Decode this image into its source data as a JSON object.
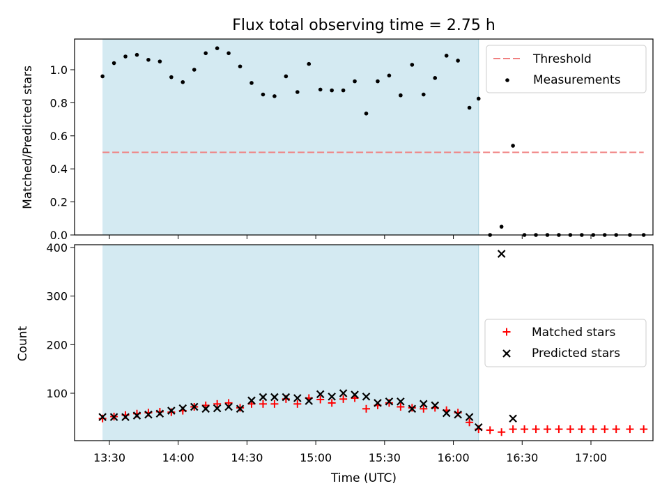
{
  "chart_data": [
    {
      "type": "scatter",
      "title": "Flux total observing time = 2.75 h",
      "xlabel": "",
      "ylabel": "Matched/Predicted stars",
      "ylim": [
        0,
        1.18
      ],
      "yticks": [
        "0.0",
        "0.2",
        "0.4",
        "0.6",
        "0.8",
        "1.0"
      ],
      "shaded_span": [
        "13:27",
        "16:11"
      ],
      "legend": {
        "position": "top-right",
        "entries": [
          "Threshold",
          "Measurements"
        ]
      },
      "threshold": {
        "name": "Threshold",
        "value": 0.5,
        "x_range": [
          "13:27",
          "17:23"
        ],
        "color": "#f08080"
      },
      "series": [
        {
          "name": "Measurements",
          "color": "#000000",
          "points": [
            [
              "13:27",
              0.96
            ],
            [
              "13:32",
              1.04
            ],
            [
              "13:37",
              1.08
            ],
            [
              "13:42",
              1.09
            ],
            [
              "13:47",
              1.06
            ],
            [
              "13:52",
              1.05
            ],
            [
              "13:57",
              0.955
            ],
            [
              "14:02",
              0.925
            ],
            [
              "14:07",
              1.0
            ],
            [
              "14:12",
              1.1
            ],
            [
              "14:17",
              1.13
            ],
            [
              "14:22",
              1.1
            ],
            [
              "14:27",
              1.02
            ],
            [
              "14:32",
              0.92
            ],
            [
              "14:37",
              0.85
            ],
            [
              "14:42",
              0.84
            ],
            [
              "14:47",
              0.96
            ],
            [
              "14:52",
              0.865
            ],
            [
              "14:57",
              1.035
            ],
            [
              "15:02",
              0.88
            ],
            [
              "15:07",
              0.875
            ],
            [
              "15:12",
              0.875
            ],
            [
              "15:17",
              0.93
            ],
            [
              "15:22",
              0.735
            ],
            [
              "15:27",
              0.93
            ],
            [
              "15:32",
              0.965
            ],
            [
              "15:37",
              0.845
            ],
            [
              "15:42",
              1.03
            ],
            [
              "15:47",
              0.85
            ],
            [
              "15:52",
              0.95
            ],
            [
              "15:57",
              1.085
            ],
            [
              "16:02",
              1.055
            ],
            [
              "16:07",
              0.77
            ],
            [
              "16:11",
              0.825
            ],
            [
              "16:16",
              0.0
            ],
            [
              "16:21",
              0.05
            ],
            [
              "16:26",
              0.54
            ],
            [
              "16:31",
              0.0
            ],
            [
              "16:36",
              0.0
            ],
            [
              "16:41",
              0.0
            ],
            [
              "16:46",
              0.0
            ],
            [
              "16:51",
              0.0
            ],
            [
              "16:56",
              0.0
            ],
            [
              "17:01",
              0.0
            ],
            [
              "17:06",
              0.0
            ],
            [
              "17:11",
              0.0
            ],
            [
              "17:17",
              0.0
            ],
            [
              "17:23",
              0.0
            ]
          ]
        }
      ]
    },
    {
      "type": "scatter",
      "xlabel": "Time (UTC)",
      "ylabel": "Count",
      "ylim": [
        10,
        405
      ],
      "yticks": [
        "100",
        "200",
        "300",
        "400"
      ],
      "xticks": [
        "13:30",
        "14:00",
        "14:30",
        "15:00",
        "15:30",
        "16:00",
        "16:30",
        "17:00"
      ],
      "shaded_span": [
        "13:27",
        "16:11"
      ],
      "legend": {
        "position": "right",
        "entries": [
          "Matched stars",
          "Predicted stars"
        ]
      },
      "series": [
        {
          "name": "Matched stars",
          "marker": "+",
          "color": "#ff0000",
          "points": [
            [
              "13:27",
              48
            ],
            [
              "13:32",
              52
            ],
            [
              "13:37",
              55
            ],
            [
              "13:42",
              58
            ],
            [
              "13:47",
              60
            ],
            [
              "13:52",
              62
            ],
            [
              "13:57",
              61
            ],
            [
              "14:02",
              64
            ],
            [
              "14:07",
              72
            ],
            [
              "14:12",
              75
            ],
            [
              "14:17",
              78
            ],
            [
              "14:22",
              80
            ],
            [
              "14:27",
              70
            ],
            [
              "14:32",
              78
            ],
            [
              "14:37",
              78
            ],
            [
              "14:42",
              78
            ],
            [
              "14:47",
              88
            ],
            [
              "14:52",
              78
            ],
            [
              "14:57",
              90
            ],
            [
              "15:02",
              87
            ],
            [
              "15:07",
              80
            ],
            [
              "15:12",
              88
            ],
            [
              "15:17",
              90
            ],
            [
              "15:22",
              68
            ],
            [
              "15:27",
              75
            ],
            [
              "15:32",
              80
            ],
            [
              "15:37",
              72
            ],
            [
              "15:42",
              70
            ],
            [
              "15:47",
              68
            ],
            [
              "15:52",
              70
            ],
            [
              "15:57",
              65
            ],
            [
              "16:02",
              60
            ],
            [
              "16:07",
              40
            ],
            [
              "16:11",
              26
            ],
            [
              "16:16",
              24
            ],
            [
              "16:21",
              20
            ],
            [
              "16:26",
              26
            ],
            [
              "16:31",
              26
            ],
            [
              "16:36",
              26
            ],
            [
              "16:41",
              26
            ],
            [
              "16:46",
              26
            ],
            [
              "16:51",
              26
            ],
            [
              "16:56",
              26
            ],
            [
              "17:01",
              26
            ],
            [
              "17:06",
              26
            ],
            [
              "17:11",
              26
            ],
            [
              "17:17",
              26
            ],
            [
              "17:23",
              26
            ]
          ]
        },
        {
          "name": "Predicted stars",
          "marker": "x",
          "color": "#000000",
          "points": [
            [
              "13:27",
              51
            ],
            [
              "13:32",
              51
            ],
            [
              "13:37",
              51
            ],
            [
              "13:42",
              54
            ],
            [
              "13:47",
              56
            ],
            [
              "13:52",
              58
            ],
            [
              "13:57",
              64
            ],
            [
              "14:02",
              69
            ],
            [
              "14:07",
              72
            ],
            [
              "14:12",
              68
            ],
            [
              "14:17",
              69
            ],
            [
              "14:22",
              72
            ],
            [
              "14:27",
              68
            ],
            [
              "14:32",
              85
            ],
            [
              "14:37",
              92
            ],
            [
              "14:42",
              92
            ],
            [
              "14:47",
              92
            ],
            [
              "14:52",
              90
            ],
            [
              "14:57",
              84
            ],
            [
              "15:02",
              98
            ],
            [
              "15:07",
              93
            ],
            [
              "15:12",
              100
            ],
            [
              "15:17",
              97
            ],
            [
              "15:22",
              93
            ],
            [
              "15:27",
              80
            ],
            [
              "15:32",
              83
            ],
            [
              "15:37",
              83
            ],
            [
              "15:42",
              68
            ],
            [
              "15:47",
              78
            ],
            [
              "15:52",
              75
            ],
            [
              "15:57",
              59
            ],
            [
              "16:02",
              56
            ],
            [
              "16:07",
              51
            ],
            [
              "16:11",
              30
            ],
            [
              "16:21",
              387
            ],
            [
              "16:26",
              48
            ]
          ]
        }
      ]
    }
  ]
}
